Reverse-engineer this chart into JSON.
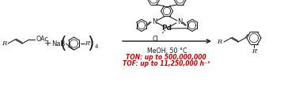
{
  "background_color": "#ffffff",
  "text_color_black": "#1a1a1a",
  "text_color_red": "#cc0000",
  "reaction_conditions": "MeOH, 50 °C",
  "ton_text": "TON: up to 500,000,000",
  "tof_text": "TOF: up to 11,250,000 h⁻¹",
  "fig_width": 3.78,
  "fig_height": 1.2,
  "dpi": 100,
  "lw": 0.75,
  "fs": 6.0
}
